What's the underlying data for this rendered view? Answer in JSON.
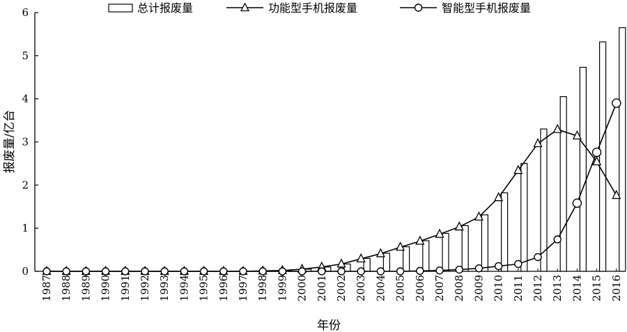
{
  "chart_data": {
    "type": "bar+line",
    "title": "",
    "xlabel": "年份",
    "ylabel": "报废量/亿台",
    "ylim": [
      0,
      6
    ],
    "yticks": [
      "0",
      "1",
      "2",
      "3",
      "4",
      "5",
      "6"
    ],
    "grid": false,
    "legend_position": "top",
    "categories": [
      "1987",
      "1988",
      "1989",
      "1990",
      "1991",
      "1992",
      "1993",
      "1994",
      "1995",
      "1996",
      "1997",
      "1998",
      "1999",
      "2000",
      "2001",
      "2002",
      "2003",
      "2004",
      "2005",
      "2006",
      "2007",
      "2008",
      "2009",
      "2010",
      "2011",
      "2012",
      "2013",
      "2014",
      "2015",
      "2016"
    ],
    "series": [
      {
        "name": "总计报废量",
        "kind": "bar",
        "values": [
          0,
          0,
          0,
          0,
          0,
          0,
          0,
          0,
          0,
          0,
          0,
          0.01,
          0.02,
          0.05,
          0.1,
          0.17,
          0.3,
          0.42,
          0.57,
          0.71,
          0.88,
          1.06,
          1.31,
          1.82,
          2.5,
          3.3,
          4.05,
          4.73,
          5.32,
          5.65
        ]
      },
      {
        "name": "功能型手机报废量",
        "kind": "line",
        "marker": "triangle",
        "values": [
          0,
          0,
          0,
          0,
          0,
          0,
          0,
          0,
          0,
          0,
          0,
          0.01,
          0.02,
          0.05,
          0.1,
          0.17,
          0.29,
          0.41,
          0.56,
          0.7,
          0.86,
          1.03,
          1.26,
          1.71,
          2.34,
          2.96,
          3.29,
          3.14,
          2.54,
          1.76
        ]
      },
      {
        "name": "智能型手机报废量",
        "kind": "line",
        "marker": "circle",
        "values": [
          0,
          0,
          0,
          0,
          0,
          0,
          0,
          0,
          0,
          0,
          0,
          0,
          0,
          0,
          0,
          0,
          0,
          0,
          0,
          0.01,
          0.02,
          0.04,
          0.07,
          0.12,
          0.17,
          0.33,
          0.74,
          1.58,
          2.76,
          3.9
        ]
      }
    ]
  }
}
